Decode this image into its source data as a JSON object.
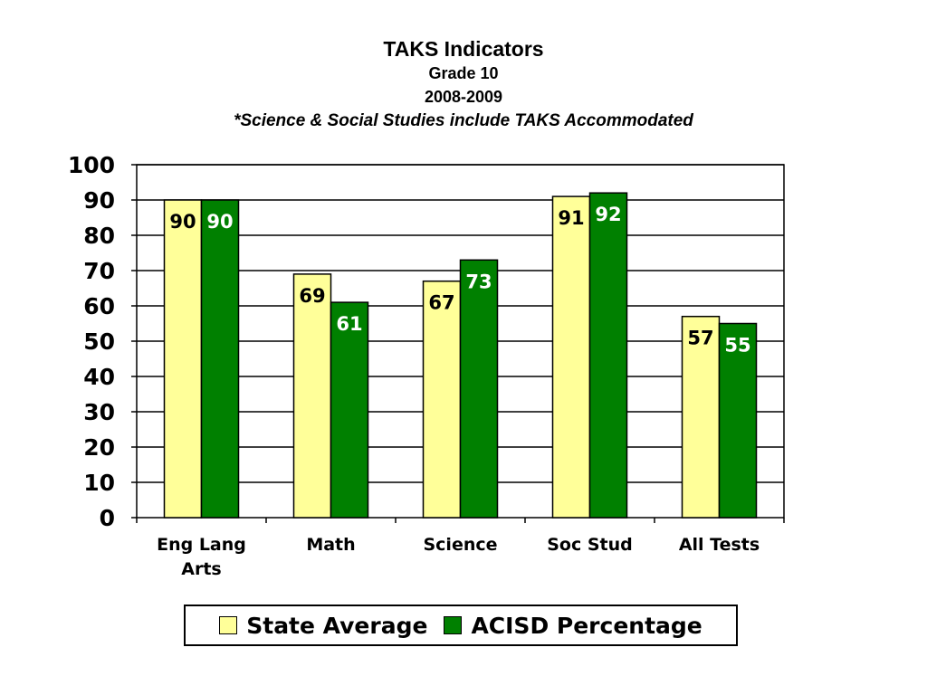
{
  "title": {
    "line1": "TAKS Indicators",
    "line2": "Grade 10",
    "line3": "2008-2009",
    "line4": "*Science & Social Studies include TAKS Accommodated"
  },
  "chart_data": {
    "type": "bar",
    "categories": [
      [
        "Eng Lang",
        "Arts"
      ],
      [
        "Math"
      ],
      [
        "Science"
      ],
      [
        "Soc Stud"
      ],
      [
        "All Tests"
      ]
    ],
    "series": [
      {
        "name": "State Average",
        "values": [
          90,
          69,
          67,
          91,
          57
        ],
        "color": "#ffff99",
        "label_color": "#000000"
      },
      {
        "name": "ACISD Percentage",
        "values": [
          90,
          61,
          73,
          92,
          55
        ],
        "color": "#008000",
        "label_color": "#ffffff"
      }
    ],
    "ylim": [
      0,
      100
    ],
    "yticks": [
      0,
      10,
      20,
      30,
      40,
      50,
      60,
      70,
      80,
      90,
      100
    ],
    "grid": true,
    "legend_position": "bottom"
  }
}
